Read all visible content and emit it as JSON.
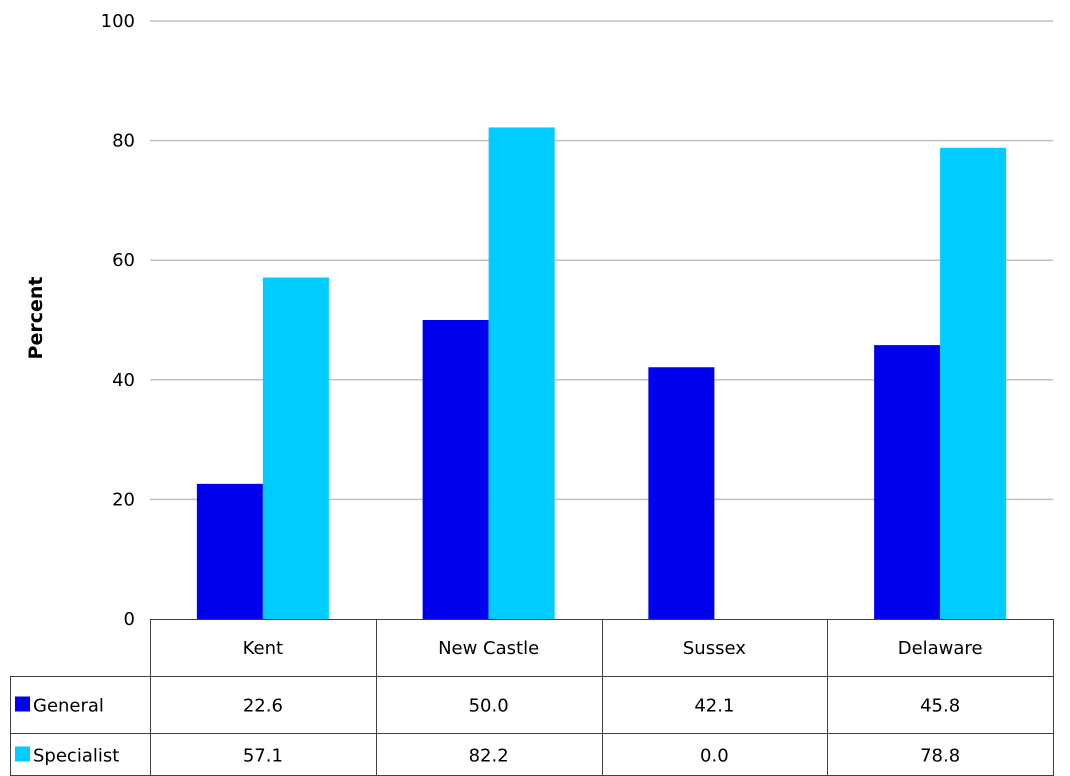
{
  "chart_data": {
    "type": "bar",
    "categories": [
      "Kent",
      "New Castle",
      "Sussex",
      "Delaware"
    ],
    "series": [
      {
        "name": "General",
        "values": [
          22.6,
          50.0,
          42.1,
          45.8
        ],
        "value_labels": [
          "22.6",
          "50.0",
          "42.1",
          "45.8"
        ],
        "color": "#0000ee"
      },
      {
        "name": "Specialist",
        "values": [
          57.1,
          82.2,
          0.0,
          78.8
        ],
        "value_labels": [
          "57.1",
          "82.2",
          "0.0",
          "78.8"
        ],
        "color": "#00ccff"
      }
    ],
    "title": "",
    "xlabel": "",
    "ylabel": "Percent",
    "ylim": [
      0,
      100
    ],
    "yticks": [
      "0",
      "20",
      "40",
      "60",
      "80",
      "100"
    ],
    "grid": true,
    "legend": "data-table"
  }
}
